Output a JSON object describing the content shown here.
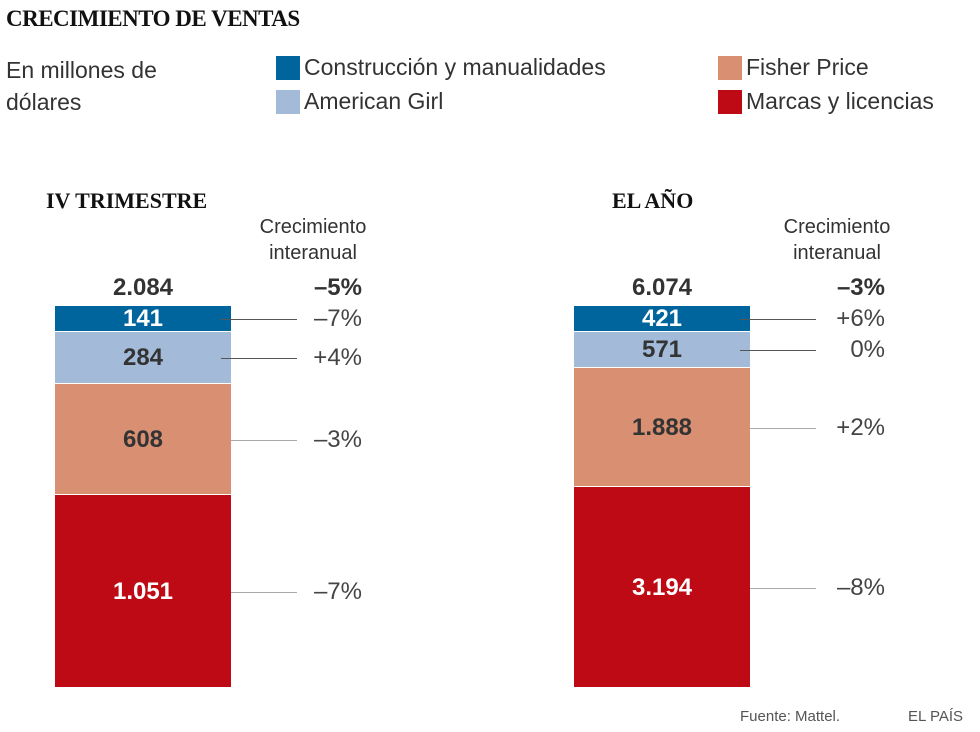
{
  "chart_data": {
    "type": "bar",
    "stacked": true,
    "title": "CRECIMIENTO DE VENTAS",
    "units": "En millones de dólares",
    "legend": [
      {
        "name": "Construcción y manualidades",
        "color": "#00659c"
      },
      {
        "name": "American Girl",
        "color": "#a3bbd9"
      },
      {
        "name": "Fisher Price",
        "color": "#d99072"
      },
      {
        "name": "Marcas y licencias",
        "color": "#be0a14"
      }
    ],
    "growth_header": "Crecimiento interanual",
    "panels": [
      {
        "title": "IV TRIMESTRE",
        "total_label": "2.084",
        "total_growth": "–5%",
        "values": [
          141,
          284,
          608,
          1051
        ],
        "value_labels": [
          "141",
          "284",
          "608",
          "1.051"
        ],
        "growth": [
          "–7%",
          "+4%",
          "–3%",
          "–7%"
        ]
      },
      {
        "title": "EL AÑO",
        "total_label": "6.074",
        "total_growth": "–3%",
        "values": [
          421,
          571,
          1888,
          3194
        ],
        "value_labels": [
          "421",
          "571",
          "1.888",
          "3.194"
        ],
        "growth": [
          "+6%",
          "0%",
          "+2%",
          "–8%"
        ]
      }
    ],
    "label_colors": [
      "#ffffff",
      "#333333",
      "#333333",
      "#ffffff"
    ]
  },
  "footer": {
    "source": "Fuente: Mattel.",
    "brand": "EL PAÍS"
  }
}
